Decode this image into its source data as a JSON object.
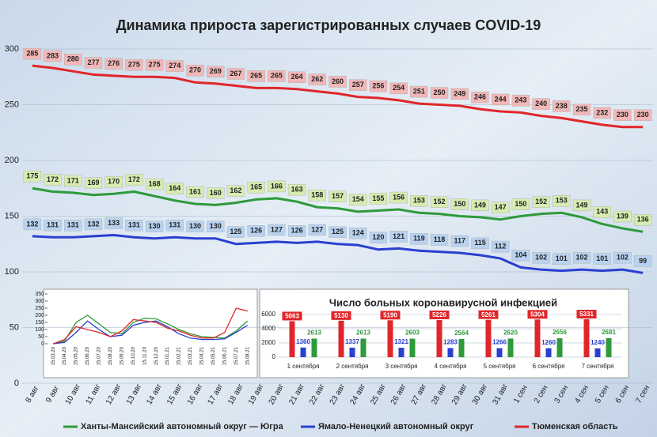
{
  "chart_data": [
    {
      "type": "line",
      "title": "Динамика прироста зарегистрированных случаев COVID-19",
      "categories": [
        "8 авг",
        "9 авг",
        "10 авг",
        "11 авг",
        "12 авг",
        "13 авг",
        "14 авг",
        "15 авг",
        "16 авг",
        "17 авг",
        "18 авг",
        "19 авг",
        "20 авг",
        "21 авг",
        "22 авг",
        "23 авг",
        "24 авг",
        "25 авг",
        "26 авг",
        "27 авг",
        "28 авг",
        "29 авг",
        "30 авг",
        "31 авг",
        "1 сен",
        "2 сен",
        "3 сен",
        "4 сен",
        "5 сен",
        "6 сен",
        "7 сен"
      ],
      "series": [
        {
          "name": "Ханты-Мансийский автономный округ — Югра",
          "color": "#2e9a3a",
          "label_fill": "#d6ecb0",
          "values": [
            175,
            172,
            171,
            169,
            170,
            172,
            168,
            164,
            161,
            160,
            162,
            165,
            166,
            163,
            158,
            157,
            154,
            155,
            156,
            153,
            152,
            150,
            149,
            147,
            150,
            152,
            153,
            149,
            143,
            139,
            136
          ]
        },
        {
          "name": "Ямало-Ненецкий автономный округ",
          "color": "#2a3fd0",
          "label_fill": "#b8d2f0",
          "values": [
            132,
            131,
            131,
            132,
            133,
            131,
            130,
            131,
            130,
            130,
            125,
            126,
            127,
            126,
            127,
            125,
            124,
            120,
            121,
            119,
            118,
            117,
            115,
            112,
            104,
            102,
            101,
            102,
            101,
            102,
            99
          ]
        },
        {
          "name": "Тюменская область",
          "color": "#e0262a",
          "label_fill": "#f2b7b7",
          "values": [
            285,
            283,
            280,
            277,
            276,
            275,
            275,
            274,
            270,
            269,
            267,
            265,
            265,
            264,
            262,
            260,
            257,
            256,
            254,
            251,
            250,
            249,
            246,
            244,
            243,
            240,
            238,
            235,
            232,
            230,
            230
          ]
        }
      ],
      "ylim": [
        0,
        300
      ],
      "yticks": [
        0,
        50,
        100,
        150,
        200,
        250,
        300
      ],
      "grid": true,
      "legend": "bottom"
    },
    {
      "type": "line",
      "categories": [
        "15.03.20",
        "15.04.20",
        "15.05.20",
        "15.06.20",
        "15.07.20",
        "15.08.20",
        "15.09.20",
        "15.10.20",
        "15.11.20",
        "15.12.20",
        "15.01.21",
        "15.02.21",
        "15.03.21",
        "15.04.21",
        "15.05.21",
        "15.06.21",
        "15.07.21",
        "15.08.21"
      ],
      "series": [
        {
          "color": "#2e9a3a",
          "values": [
            0,
            20,
            150,
            200,
            140,
            80,
            70,
            150,
            180,
            175,
            140,
            100,
            70,
            50,
            45,
            40,
            90,
            160
          ]
        },
        {
          "color": "#2a3fd0",
          "values": [
            0,
            10,
            80,
            160,
            100,
            50,
            60,
            130,
            150,
            160,
            120,
            70,
            40,
            30,
            30,
            35,
            80,
            130
          ]
        },
        {
          "color": "#e0262a",
          "values": [
            0,
            30,
            120,
            100,
            80,
            50,
            90,
            170,
            160,
            150,
            110,
            90,
            60,
            40,
            40,
            80,
            250,
            230
          ]
        }
      ],
      "ylim": [
        0,
        350
      ],
      "yticks": [
        0,
        50,
        100,
        150,
        200,
        250,
        300,
        350
      ],
      "grid": false
    },
    {
      "type": "bar",
      "title": "Число больных коронавирусной инфекцией",
      "categories": [
        "1 сентября",
        "2 сентября",
        "3 сентября",
        "4 сентября",
        "5 сентября",
        "6 сентября",
        "7 сентября"
      ],
      "series": [
        {
          "color": "#e0262a",
          "values": [
            5063,
            5130,
            5190,
            5226,
            5261,
            5304,
            5331
          ]
        },
        {
          "color": "#2a3fd0",
          "values": [
            1360,
            1337,
            1321,
            1283,
            1266,
            1260,
            1240
          ]
        },
        {
          "color": "#2e9a3a",
          "values": [
            2613,
            2613,
            2603,
            2564,
            2620,
            2656,
            2681
          ]
        }
      ],
      "ylim": [
        0,
        6000
      ],
      "yticks": [
        0,
        2000,
        4000,
        6000
      ],
      "grid": true
    }
  ]
}
